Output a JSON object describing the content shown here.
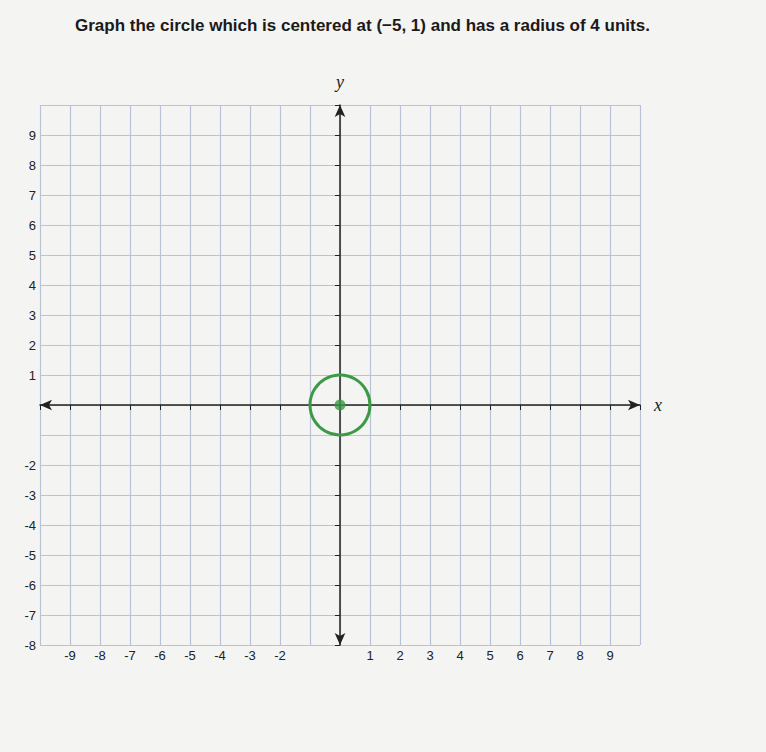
{
  "chart_data": {
    "type": "circle",
    "title": "Graph the circle which is centered at (−5, 1) and has a radius of 4 units.",
    "xlabel": "x",
    "ylabel": "y",
    "xlim": [
      -10,
      10
    ],
    "ylim": [
      -8,
      10
    ],
    "xticks": [
      -9,
      -8,
      -7,
      -6,
      -5,
      -4,
      -3,
      -2,
      1,
      2,
      3,
      4,
      5,
      6,
      7,
      8,
      9
    ],
    "yticks": [
      -8,
      -7,
      -6,
      -5,
      -4,
      -3,
      -2,
      1,
      2,
      3,
      4,
      5,
      6,
      7,
      8,
      9
    ],
    "grid": true,
    "color": "#3c9a46",
    "marker": "circle",
    "circles": [
      {
        "center": [
          0,
          0
        ],
        "radius": 1
      }
    ]
  }
}
